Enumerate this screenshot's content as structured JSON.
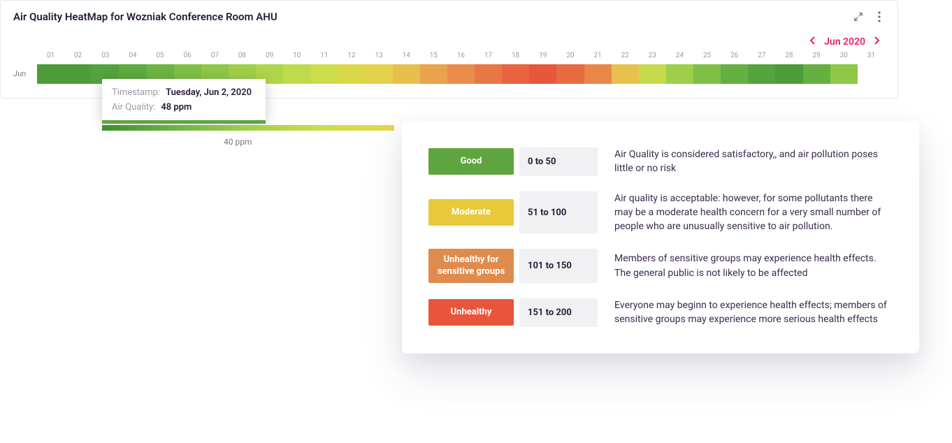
{
  "card": {
    "title": "Air Quality HeatMap for Wozniak Conference Room AHU",
    "date_label": "Jun 2020"
  },
  "heatmap": {
    "row_label": "Jun",
    "days": [
      {
        "n": "01",
        "color": "#4d9c3a"
      },
      {
        "n": "02",
        "color": "#4d9c3a"
      },
      {
        "n": "03",
        "color": "#55a33d"
      },
      {
        "n": "04",
        "color": "#5cab3f"
      },
      {
        "n": "05",
        "color": "#6cb443"
      },
      {
        "n": "06",
        "color": "#7fbf46"
      },
      {
        "n": "07",
        "color": "#8fc748"
      },
      {
        "n": "08",
        "color": "#9ecf4a"
      },
      {
        "n": "09",
        "color": "#aed64b"
      },
      {
        "n": "10",
        "color": "#bedb4b"
      },
      {
        "n": "11",
        "color": "#cddc4a"
      },
      {
        "n": "12",
        "color": "#d9d84a"
      },
      {
        "n": "13",
        "color": "#e3d24b"
      },
      {
        "n": "14",
        "color": "#e8be4c"
      },
      {
        "n": "15",
        "color": "#eaa34d"
      },
      {
        "n": "16",
        "color": "#ea8c4a"
      },
      {
        "n": "17",
        "color": "#e97745"
      },
      {
        "n": "18",
        "color": "#e86340"
      },
      {
        "n": "19",
        "color": "#e7573c"
      },
      {
        "n": "20",
        "color": "#e86a41"
      },
      {
        "n": "21",
        "color": "#ea8748"
      },
      {
        "n": "22",
        "color": "#e6c24c"
      },
      {
        "n": "23",
        "color": "#c7da4b"
      },
      {
        "n": "24",
        "color": "#9ecf4a"
      },
      {
        "n": "25",
        "color": "#7fbf46"
      },
      {
        "n": "26",
        "color": "#65b041"
      },
      {
        "n": "27",
        "color": "#55a33d"
      },
      {
        "n": "28",
        "color": "#4d9c3a"
      },
      {
        "n": "29",
        "color": "#65b041"
      },
      {
        "n": "30",
        "color": "#8fc748"
      },
      {
        "n": "31",
        "color": "#ffffff"
      }
    ],
    "cell_border": "#ffffff"
  },
  "tooltip": {
    "k1": "Timestamp:",
    "v1": "Tuesday, Jun 2, 2020",
    "k2": "Air Quality:",
    "v2": "48 ppm",
    "underline_color": "#5ea53f"
  },
  "gradient": {
    "label": "40 ppm",
    "stops": [
      "#3f8e2e",
      "#6cb443",
      "#a3cf4a",
      "#cddc4a",
      "#e7d74b"
    ]
  },
  "legend": {
    "rows": [
      {
        "label": "Good",
        "color": "#5ea53f",
        "range": "0 to 50",
        "desc": "Air Quality is considered satisfactory,, and air pollution poses little or no risk"
      },
      {
        "label": "Moderate",
        "color": "#e9c93a",
        "range": "51 to 100",
        "desc": "Air quality is acceptable: however, for some pollutants there may be a moderate health concern for a very small number of people who are unusually sensitive to air pollution."
      },
      {
        "label": "Unhealthy for sensitive groups",
        "color": "#e08b4e",
        "range": "101 to 150",
        "desc": "Members of sensitive groups may experience health effects. The general public is not likely to be affected"
      },
      {
        "label": "Unhealthy",
        "color": "#e8553a",
        "range": "151 to 200",
        "desc": "Everyone may beginn to experience health effects; members of sensitive groups may experience more serious health effects"
      }
    ],
    "range_bg": "#f1f0f2"
  },
  "colors": {
    "title": "#2a1a3a",
    "muted": "#9c98a6",
    "accent": "#e61e6b"
  }
}
